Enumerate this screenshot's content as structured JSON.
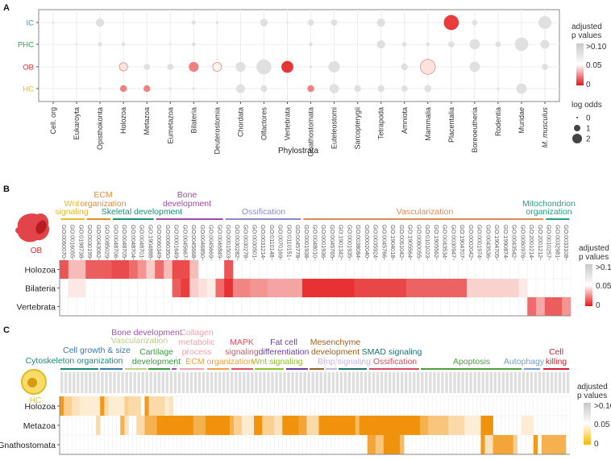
{
  "panels": {
    "a": "A",
    "b": "B",
    "c": "C"
  },
  "colors": {
    "red": "#e4191c",
    "orange": "#f08c00",
    "gray": "#c8c8c8"
  },
  "chart_data": [
    {
      "type": "scatter",
      "xlabel": "Phylostrata",
      "x_categories": [
        "Cell. org",
        "Eukaroyta",
        "Opisthokonta",
        "Holozoa",
        "Metazoa",
        "Eumetazoa",
        "Bilateria",
        "Deuterostomia",
        "Chordata",
        "Olfactores",
        "Vertebrata",
        "Gnathostomata",
        "Euteleostomi",
        "Sarcopterygii",
        "Tetrapoda",
        "Amniota",
        "Mammalia",
        "Placentalia",
        "Boreoeutheria",
        "Rodentia",
        "Muridae",
        "M. musculus"
      ],
      "y_categories": [
        {
          "label": "IC",
          "color": "#4a8ac4"
        },
        {
          "label": "PHC",
          "color": "#2fa050"
        },
        {
          "label": "OB",
          "color": "#d03030"
        },
        {
          "label": "HC",
          "color": "#e8b830"
        }
      ],
      "points": {
        "IC": [
          [
            "Cell. org",
            0.1,
            0.1
          ],
          [
            "Opisthokonta",
            0.1,
            1.3
          ],
          [
            "Bilateria",
            0.1,
            0.5
          ],
          [
            "Deuterostomia",
            0.1,
            0.2
          ],
          [
            "Olfactores",
            0.1,
            1.2
          ],
          [
            "Vertebrata",
            0.1,
            0.1
          ],
          [
            "Gnathostomata",
            0.1,
            0.9
          ],
          [
            "Euteleostomi",
            0.1,
            0.9
          ],
          [
            "Tetrapoda",
            0.1,
            1.3
          ],
          [
            "Placentalia",
            0.005,
            2.6
          ],
          [
            "Boreoeutheria",
            0.1,
            0.7
          ],
          [
            "M. musculus",
            0.1,
            2.2
          ]
        ],
        "PHC": [
          [
            "Eukaroyta",
            0.1,
            0.1
          ],
          [
            "Opisthokonta",
            0.1,
            0.5
          ],
          [
            "Holozoa",
            0.1,
            0.4
          ],
          [
            "Eumetazoa",
            0.1,
            0.1
          ],
          [
            "Bilateria",
            0.1,
            0.4
          ],
          [
            "Gnathostomata",
            0.1,
            0.4
          ],
          [
            "Tetrapoda",
            0.1,
            1.3
          ],
          [
            "Amniota",
            0.1,
            0.6
          ],
          [
            "Mammalia",
            0.1,
            0.4
          ],
          [
            "Placentalia",
            0.1,
            0.9
          ],
          [
            "Boreoeutheria",
            0.1,
            1.7
          ],
          [
            "Rodentia",
            0.1,
            0.8
          ],
          [
            "Muridae",
            0.1,
            2.3
          ],
          [
            "M. musculus",
            0.1,
            1.4
          ]
        ],
        "OB": [
          [
            "Holozoa",
            0.047,
            1.3
          ],
          [
            "Metazoa",
            0.1,
            0.9
          ],
          [
            "Eumetazoa",
            0.1,
            0.9
          ],
          [
            "Bilateria",
            0.02,
            1.6
          ],
          [
            "Deuterostomia",
            0.058,
            1.4
          ],
          [
            "Chordata",
            0.1,
            1.6
          ],
          [
            "Olfactores",
            0.1,
            2.6
          ],
          [
            "Vertebrata",
            0.004,
            2.0
          ],
          [
            "Gnathostomata",
            0.1,
            0.2
          ],
          [
            "Euteleostomi",
            0.1,
            1.9
          ],
          [
            "Amniota",
            0.1,
            1.0
          ],
          [
            "Mammalia",
            0.046,
            2.6
          ],
          [
            "Boreoeutheria",
            0.1,
            1.7
          ],
          [
            "M. musculus",
            0.1,
            0.9
          ]
        ],
        "HC": [
          [
            "Opisthokonta",
            0.1,
            0.2
          ],
          [
            "Holozoa",
            0.02,
            1.0
          ],
          [
            "Metazoa",
            0.02,
            1.0
          ],
          [
            "Eumetazoa",
            0.1,
            0.2
          ],
          [
            "Bilateria",
            0.1,
            0.2
          ],
          [
            "Chordata",
            0.1,
            1.4
          ],
          [
            "Olfactores",
            0.1,
            1.0
          ],
          [
            "Gnathostomata",
            0.02,
            1.0
          ],
          [
            "Euteleostomi",
            0.1,
            1.5
          ],
          [
            "Sarcopterygii",
            0.1,
            1.0
          ],
          [
            "Tetrapoda",
            0.1,
            1.0
          ],
          [
            "Amniota",
            0.1,
            0.9
          ],
          [
            "Mammalia",
            0.1,
            1.1
          ],
          [
            "Rodentia",
            0.1,
            0.2
          ],
          [
            "Muridae",
            0.1,
            1.7
          ]
        ]
      },
      "legend": {
        "color_title": [
          "adjusted",
          "p values"
        ],
        "color_ticks": [
          ">0.10",
          "0.05",
          "0"
        ],
        "size_title": "log odds",
        "size_ticks": [
          "0",
          "1",
          "2"
        ],
        "placement": "right"
      }
    },
    {
      "type": "heatmap",
      "cell_label": "OB",
      "rows": [
        "Holozoa",
        "Bilateria",
        "Vertebrata"
      ],
      "columns": [
        "GO:0060070",
        "GO:0016055",
        "GO:0198738",
        "GO:0030199",
        "GO:0043062",
        "GO:0085029",
        "GO:0048706",
        "GO:0048705",
        "GO:0048704",
        "GO:0048701",
        "GO:1904888",
        "GO:0060349",
        "GO:0060350",
        "GO:0001649",
        "GO:0045667",
        "GO:0045668",
        "GO:0046850",
        "GO:0045669",
        "GO:0046849",
        "GO:0001503",
        "GO:0030282",
        "GO:0030278",
        "GO:0030501",
        "GO:0031214",
        "GO:0110148",
        "GO:0070169",
        "GO:0110151",
        "GO:0045778",
        "GO:0001938",
        "GO:0048010",
        "GO:0001936",
        "GO:0045765",
        "GO:1901342",
        "GO:0001935",
        "GO:0038084",
        "GO:0002040",
        "GO:0035924",
        "GO:0045766",
        "GO:1904018",
        "GO:0061042",
        "GO:1905564",
        "GO:0060055",
        "GO:0101023",
        "GO:1905562",
        "GO:0043534",
        "GO:0030947",
        "GO:1904707",
        "GO:0002042",
        "GO:0001974",
        "GO:0043536",
        "GO:1904705",
        "GO:1990874",
        "GO:0043542",
        "GO:0060976",
        "GO:2001214",
        "GO:2001212",
        "GO:0010257",
        "GO:0032981",
        "GO:0033108"
      ],
      "groups": [
        {
          "lines": [
            "Wnt",
            "signaling"
          ],
          "start": 0,
          "end": 2,
          "color": "#e8b830"
        },
        {
          "lines": [
            "ECM",
            "organization"
          ],
          "start": 3,
          "end": 5,
          "color": "#e38b35"
        },
        {
          "lines": [
            "Skeletal development"
          ],
          "start": 6,
          "end": 10,
          "color": "#1a9070"
        },
        {
          "lines": [
            "Bone",
            "development"
          ],
          "start": 11,
          "end": 18,
          "color": "#a048a8"
        },
        {
          "lines": [
            "Ossification"
          ],
          "start": 19,
          "end": 27,
          "color": "#8c88c8"
        },
        {
          "lines": [
            "Vascularization"
          ],
          "start": 28,
          "end": 55,
          "color": "#e08a50"
        },
        {
          "lines": [
            "Mitochondrion",
            "organization"
          ],
          "start": 56,
          "end": 58,
          "color": "#26a080"
        }
      ],
      "segments": {
        "Holozoa": [
          [
            0,
            0,
            0.01
          ],
          [
            1,
            2,
            0.035
          ],
          [
            3,
            5,
            0.012
          ],
          [
            6,
            7,
            0.008
          ],
          [
            8,
            8,
            0.015
          ],
          [
            9,
            9,
            0.025
          ],
          [
            10,
            10,
            0.04
          ],
          [
            11,
            11,
            0.015
          ],
          [
            12,
            12,
            0.035
          ],
          [
            13,
            14,
            0.008
          ],
          [
            15,
            15,
            0.035
          ],
          [
            19,
            19,
            0.01
          ]
        ],
        "Bilateria": [
          [
            1,
            2,
            0.048
          ],
          [
            13,
            13,
            0.012
          ],
          [
            14,
            14,
            0.005
          ],
          [
            15,
            15,
            0.04
          ],
          [
            16,
            16,
            0.045
          ],
          [
            17,
            17,
            0.049
          ],
          [
            18,
            18,
            0.015
          ],
          [
            19,
            19,
            0.003
          ],
          [
            20,
            21,
            0.021
          ],
          [
            22,
            23,
            0.025
          ],
          [
            24,
            27,
            0.029
          ],
          [
            28,
            33,
            0.003
          ],
          [
            34,
            39,
            0.007
          ],
          [
            40,
            46,
            0.013
          ],
          [
            47,
            52,
            0.041
          ],
          [
            53,
            53,
            0.048
          ]
        ],
        "Vertebrata": [
          [
            54,
            54,
            0.015
          ],
          [
            55,
            55,
            0.03
          ],
          [
            56,
            57,
            0.012
          ],
          [
            58,
            58,
            0.025
          ]
        ]
      },
      "legend": {
        "title": [
          "adjusted",
          "p values"
        ],
        "ticks": [
          ">0.10",
          "0.05",
          "0"
        ]
      }
    },
    {
      "type": "heatmap",
      "cell_label": "HC",
      "rows": [
        "Holozoa",
        "Metazoa",
        "Gnathostomata"
      ],
      "n_columns": 126,
      "groups": [
        {
          "lines": [
            "Cytoskeleton organization"
          ],
          "color": "#1a8a7a"
        },
        {
          "lines": [
            "Cell growth & size"
          ],
          "color": "#3a78b0"
        },
        {
          "lines": [
            "Vascularization"
          ],
          "color": "#b8d080"
        },
        {
          "lines": [
            "Cartilage",
            "development"
          ],
          "color": "#3a9a40"
        },
        {
          "lines": [
            "Bone development"
          ],
          "color": "#a050b0"
        },
        {
          "lines": [
            "Collagen",
            "metabolic",
            "process"
          ],
          "color": "#f0a0b0"
        },
        {
          "lines": [
            "ECM organization"
          ],
          "color": "#f0a040"
        },
        {
          "lines": [
            "MAPK",
            "signaling"
          ],
          "color": "#e05060"
        },
        {
          "lines": [
            "Wnt signaling"
          ],
          "color": "#90c030"
        },
        {
          "lines": [
            "Fat cell",
            "differentiation"
          ],
          "color": "#6a3ea0"
        },
        {
          "lines": [
            "Mesenchyme",
            "development"
          ],
          "color": "#9a6020"
        },
        {
          "lines": [
            "Bmp signaling"
          ],
          "color": "#c4b4e0"
        },
        {
          "lines": [
            "SMAD signaling"
          ],
          "color": "#207070"
        },
        {
          "lines": [
            "Ossification"
          ],
          "color": "#d05060"
        },
        {
          "lines": [
            "Apoptosis"
          ],
          "color": "#50a040"
        },
        {
          "lines": [
            "Autophagy"
          ],
          "color": "#70a0d0"
        },
        {
          "lines": [
            "Cell",
            "killing"
          ],
          "color": "#d02030"
        }
      ],
      "segments": {
        "Holozoa": [
          [
            0,
            0,
            0.005
          ],
          [
            1,
            2,
            0.03
          ],
          [
            3,
            4,
            0.04
          ],
          [
            5,
            9,
            0.045
          ],
          [
            10,
            10,
            0.005
          ],
          [
            11,
            11,
            0.035
          ],
          [
            12,
            15,
            0.045
          ],
          [
            16,
            16,
            0.03
          ],
          [
            17,
            19,
            0.035
          ],
          [
            21,
            21,
            0.005
          ],
          [
            22,
            25,
            0.035
          ],
          [
            26,
            26,
            0.045
          ],
          [
            27,
            27,
            0.04
          ]
        ],
        "Metazoa": [
          [
            9,
            9,
            0.035
          ],
          [
            15,
            15,
            0.015
          ],
          [
            16,
            16,
            0.04
          ],
          [
            19,
            20,
            0.035
          ],
          [
            21,
            23,
            0.015
          ],
          [
            24,
            32,
            0.002
          ],
          [
            33,
            35,
            0.015
          ],
          [
            36,
            41,
            0.002
          ],
          [
            42,
            42,
            0.015
          ],
          [
            43,
            44,
            0.03
          ],
          [
            45,
            47,
            0.044
          ],
          [
            48,
            49,
            0.002
          ],
          [
            50,
            52,
            0.03
          ],
          [
            53,
            54,
            0.04
          ],
          [
            55,
            58,
            0.002
          ],
          [
            59,
            60,
            0.01
          ],
          [
            61,
            63,
            0.035
          ],
          [
            64,
            72,
            0.002
          ],
          [
            73,
            73,
            0.02
          ],
          [
            74,
            88,
            0.002
          ],
          [
            89,
            90,
            0.015
          ],
          [
            91,
            95,
            0.025
          ],
          [
            96,
            99,
            0.035
          ],
          [
            100,
            103,
            0.046
          ],
          [
            104,
            106,
            0.002
          ],
          [
            114,
            116,
            0.045
          ]
        ],
        "Gnathostomata": [
          [
            76,
            77,
            0.01
          ],
          [
            78,
            79,
            0.025
          ],
          [
            80,
            83,
            0.002
          ],
          [
            84,
            84,
            0.02
          ],
          [
            104,
            104,
            0.005
          ],
          [
            105,
            106,
            0.04
          ],
          [
            107,
            111,
            0.01
          ],
          [
            112,
            112,
            0.03
          ],
          [
            117,
            117,
            0.005
          ],
          [
            119,
            124,
            0.015
          ]
        ]
      },
      "legend": {
        "title": [
          "adjusted",
          "p values"
        ],
        "ticks": [
          ">0.10",
          "0.05",
          "0"
        ]
      }
    }
  ]
}
